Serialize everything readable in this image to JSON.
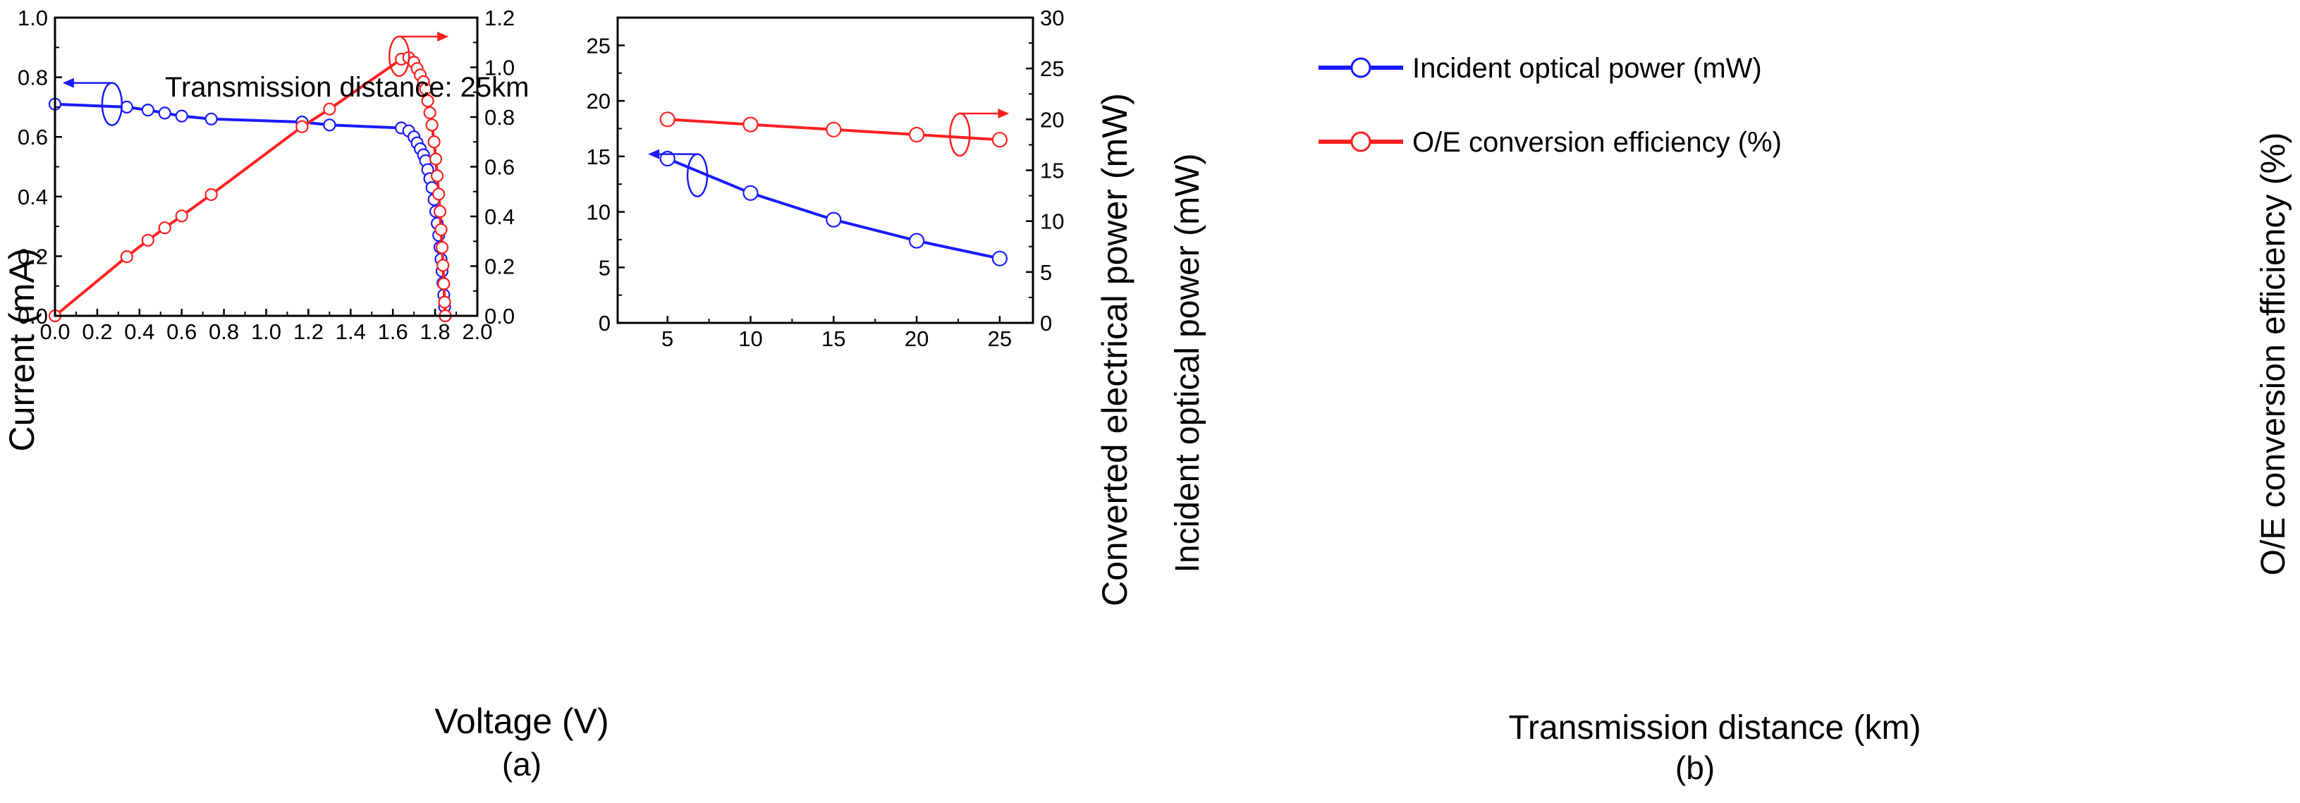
{
  "chart_data": [
    {
      "panel": "a",
      "type": "line",
      "caption": "(a)",
      "annotation": "Transmission distance: 25km",
      "xlabel": "Voltage (V)",
      "ylabel_left": "Current (mA)",
      "ylabel_right": "Converted electrical power (mW)",
      "xlim": [
        0,
        2.0
      ],
      "ylim_left": [
        0,
        1.0
      ],
      "ylim_right": [
        0,
        1.2
      ],
      "x_ticks": [
        "0.0",
        "0.2",
        "0.4",
        "0.6",
        "0.8",
        "1.0",
        "1.2",
        "1.4",
        "1.6",
        "1.8",
        "2.0"
      ],
      "y_left_ticks": [
        "0.0",
        "0.2",
        "0.4",
        "0.6",
        "0.8",
        "1.0"
      ],
      "y_right_ticks": [
        "0.0",
        "0.2",
        "0.4",
        "0.6",
        "0.8",
        "1.0",
        "1.2"
      ],
      "series": [
        {
          "name": "Current",
          "axis": "left",
          "color": "#1a1aff",
          "x": [
            0.0,
            0.34,
            0.44,
            0.52,
            0.6,
            0.74,
            1.17,
            1.3,
            1.64,
            1.675,
            1.7,
            1.715,
            1.73,
            1.745,
            1.755,
            1.765,
            1.775,
            1.785,
            1.795,
            1.803,
            1.81,
            1.817,
            1.823,
            1.828,
            1.833,
            1.837,
            1.841,
            1.845,
            1.848
          ],
          "y": [
            0.71,
            0.7,
            0.69,
            0.68,
            0.67,
            0.66,
            0.65,
            0.64,
            0.63,
            0.62,
            0.6,
            0.58,
            0.56,
            0.54,
            0.52,
            0.49,
            0.46,
            0.43,
            0.39,
            0.35,
            0.31,
            0.27,
            0.23,
            0.19,
            0.15,
            0.11,
            0.07,
            0.03,
            0.0
          ]
        },
        {
          "name": "Converted electrical power",
          "axis": "right",
          "color": "#ff2020",
          "x": [
            0.0,
            0.34,
            0.44,
            0.52,
            0.6,
            0.74,
            1.17,
            1.3,
            1.64,
            1.675,
            1.7,
            1.715,
            1.73,
            1.745,
            1.755,
            1.765,
            1.775,
            1.785,
            1.795,
            1.803,
            1.81,
            1.817,
            1.823,
            1.828,
            1.833,
            1.837,
            1.841,
            1.845,
            1.848
          ],
          "y": [
            0.0,
            0.238,
            0.304,
            0.354,
            0.402,
            0.488,
            0.761,
            0.832,
            1.033,
            1.039,
            1.02,
            0.995,
            0.969,
            0.942,
            0.913,
            0.865,
            0.817,
            0.768,
            0.7,
            0.631,
            0.563,
            0.49,
            0.42,
            0.347,
            0.275,
            0.203,
            0.129,
            0.055,
            0.0
          ]
        }
      ],
      "indicators": [
        {
          "target": "Current",
          "axis_arrow": "left"
        },
        {
          "target": "Converted electrical power",
          "axis_arrow": "right"
        }
      ]
    },
    {
      "panel": "b",
      "type": "line",
      "caption": "(b)",
      "xlabel": "Transmission distance (km)",
      "ylabel_left": "Incident optical power (mW)",
      "ylabel_right": "O/E conversion efficiency (%)",
      "xlim": [
        2,
        27
      ],
      "ylim_left": [
        0,
        27.5
      ],
      "ylim_right": [
        0,
        30
      ],
      "x_ticks": [
        "5",
        "10",
        "15",
        "20",
        "25"
      ],
      "y_left_ticks": [
        "0",
        "5",
        "10",
        "15",
        "20",
        "25"
      ],
      "y_right_ticks": [
        "0",
        "5",
        "10",
        "15",
        "20",
        "25",
        "30"
      ],
      "legend_position": "top-left",
      "series": [
        {
          "name": "Incident optical power (mW)",
          "axis": "left",
          "color": "#1a1aff",
          "x": [
            5,
            10,
            15,
            20,
            25
          ],
          "y": [
            14.8,
            11.7,
            9.3,
            7.4,
            5.8
          ]
        },
        {
          "name": "O/E conversion efficiency (%)",
          "axis": "right",
          "color": "#ff2020",
          "x": [
            5,
            10,
            15,
            20,
            25
          ],
          "y": [
            20.0,
            19.5,
            19.0,
            18.5,
            18.0
          ]
        }
      ],
      "indicators": [
        {
          "target": "Incident optical power (mW)",
          "axis_arrow": "left"
        },
        {
          "target": "O/E conversion efficiency (%)",
          "axis_arrow": "right"
        }
      ]
    }
  ]
}
